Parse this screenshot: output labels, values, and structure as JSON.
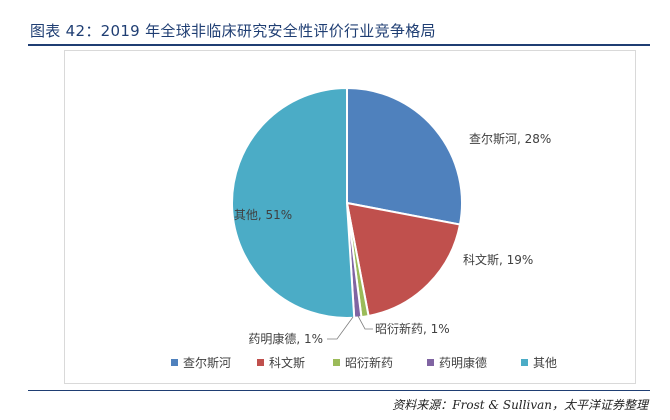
{
  "figure": {
    "title": "图表 42：2019 年全球非临床研究安全性评价行业竞争格局",
    "source": "资料来源：Frost & Sullivan，太平洋证券整理"
  },
  "chart_data": {
    "type": "pie",
    "categories": [
      "查尔斯河",
      "科文斯",
      "昭衍新药",
      "药明康德",
      "其他"
    ],
    "values": [
      28,
      19,
      1,
      1,
      51
    ],
    "unit": "%",
    "data_labels": [
      "查尔斯河, 28%",
      "科文斯, 19%",
      "昭衍新药, 1%",
      "药明康德, 1%",
      "其他, 51%"
    ],
    "colors": [
      "#4f81bd",
      "#c0504d",
      "#9bbb59",
      "#8064a2",
      "#4bacc6"
    ],
    "legend_position": "bottom",
    "start_angle": "12 o'clock",
    "direction": "clockwise"
  }
}
